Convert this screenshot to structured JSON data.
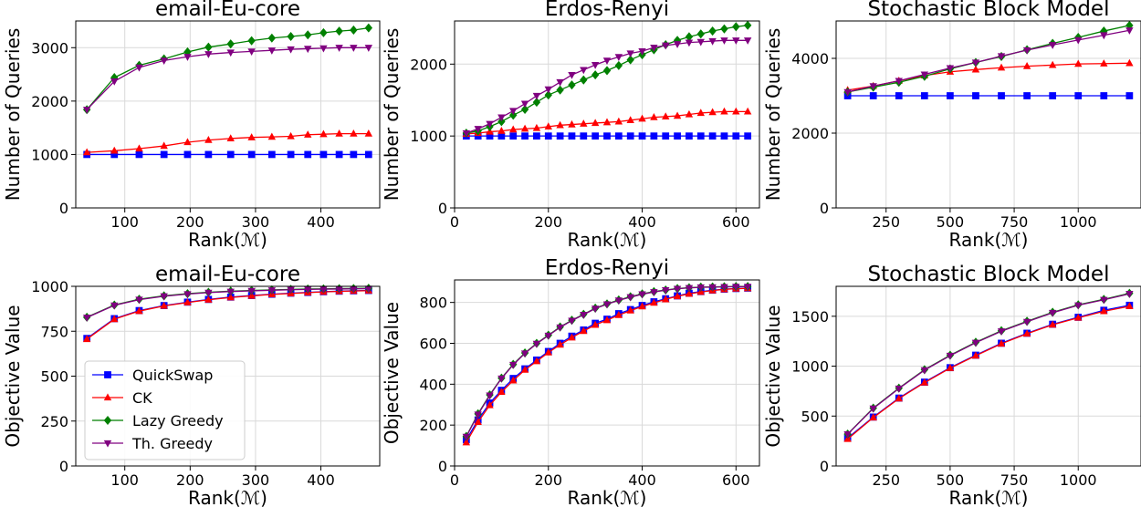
{
  "colors": {
    "QuickSwap": "#0000ff",
    "CK": "#ff0000",
    "Lazy Greedy": "#008000",
    "Th. Greedy": "#800080"
  },
  "markers": {
    "QuickSwap": "square",
    "CK": "triangle-up",
    "Lazy Greedy": "diamond",
    "Th. Greedy": "triangle-down"
  },
  "legend": [
    "QuickSwap",
    "CK",
    "Lazy Greedy",
    "Th. Greedy"
  ],
  "chart_data": [
    {
      "type": "line",
      "title": "email-Eu-core",
      "xlabel": "Rank(ℳ)",
      "ylabel": "Number of Queries",
      "xlim": [
        25,
        490
      ],
      "ylim": [
        0,
        3500
      ],
      "xticks": [
        100,
        200,
        300,
        400
      ],
      "yticks": [
        0,
        1000,
        2000,
        3000
      ],
      "grid": true,
      "x": [
        42,
        84,
        122,
        160,
        196,
        228,
        262,
        294,
        325,
        354,
        380,
        404,
        428,
        450,
        473
      ],
      "series": [
        {
          "name": "QuickSwap",
          "values": [
            1000,
            1000,
            1000,
            1000,
            1000,
            1000,
            1000,
            1000,
            1000,
            1000,
            1000,
            1000,
            1000,
            1000,
            1000
          ]
        },
        {
          "name": "CK",
          "values": [
            1040,
            1070,
            1110,
            1160,
            1230,
            1270,
            1300,
            1320,
            1330,
            1340,
            1370,
            1380,
            1390,
            1390,
            1390
          ]
        },
        {
          "name": "Lazy Greedy",
          "values": [
            1840,
            2440,
            2670,
            2790,
            2920,
            3010,
            3070,
            3130,
            3180,
            3210,
            3240,
            3280,
            3310,
            3330,
            3370
          ]
        },
        {
          "name": "Th. Greedy",
          "values": [
            1840,
            2370,
            2630,
            2760,
            2830,
            2880,
            2910,
            2930,
            2950,
            2970,
            2980,
            2990,
            3000,
            3000,
            3000
          ]
        }
      ]
    },
    {
      "type": "line",
      "title": "Erdos-Renyi",
      "xlabel": "Rank(ℳ)",
      "ylabel": "Number of Queries",
      "xlim": [
        0,
        650
      ],
      "ylim": [
        0,
        2600
      ],
      "xticks": [
        0,
        200,
        400,
        600
      ],
      "yticks": [
        0,
        1000,
        2000
      ],
      "grid": true,
      "x": [
        25,
        50,
        75,
        100,
        125,
        150,
        175,
        200,
        225,
        250,
        275,
        300,
        325,
        350,
        375,
        400,
        425,
        450,
        475,
        500,
        525,
        550,
        575,
        600,
        625
      ],
      "series": [
        {
          "name": "QuickSwap",
          "values": [
            1000,
            1000,
            1000,
            1000,
            1000,
            1000,
            1000,
            1000,
            1000,
            1000,
            1000,
            1000,
            1000,
            1000,
            1000,
            1000,
            1000,
            1000,
            1000,
            1000,
            1000,
            1000,
            1000,
            1000,
            1000
          ]
        },
        {
          "name": "CK",
          "values": [
            1030,
            1040,
            1060,
            1070,
            1090,
            1100,
            1110,
            1130,
            1150,
            1160,
            1170,
            1180,
            1190,
            1200,
            1220,
            1240,
            1260,
            1270,
            1280,
            1300,
            1320,
            1330,
            1340,
            1340,
            1340
          ]
        },
        {
          "name": "Lazy Greedy",
          "values": [
            1040,
            1070,
            1130,
            1200,
            1290,
            1370,
            1470,
            1570,
            1640,
            1710,
            1780,
            1850,
            1910,
            1980,
            2060,
            2130,
            2200,
            2270,
            2330,
            2380,
            2420,
            2460,
            2490,
            2520,
            2540
          ]
        },
        {
          "name": "Th. Greedy",
          "values": [
            1040,
            1100,
            1170,
            1260,
            1350,
            1450,
            1560,
            1650,
            1750,
            1850,
            1920,
            1990,
            2050,
            2100,
            2150,
            2180,
            2230,
            2260,
            2280,
            2300,
            2310,
            2320,
            2330,
            2330,
            2330
          ]
        }
      ]
    },
    {
      "type": "line",
      "title": "Stochastic Block Model",
      "xlabel": "Rank(ℳ)",
      "ylabel": "Number of Queries",
      "xlim": [
        55,
        1245
      ],
      "ylim": [
        0,
        5000
      ],
      "xticks": [
        250,
        500,
        750,
        1000
      ],
      "yticks": [
        0,
        2000,
        4000
      ],
      "grid": true,
      "x": [
        100,
        200,
        300,
        400,
        500,
        600,
        700,
        800,
        900,
        1000,
        1100,
        1200
      ],
      "series": [
        {
          "name": "QuickSwap",
          "values": [
            3000,
            3000,
            3000,
            3000,
            3000,
            3000,
            3000,
            3000,
            3000,
            3000,
            3000,
            3000
          ]
        },
        {
          "name": "CK",
          "values": [
            3150,
            3260,
            3400,
            3540,
            3640,
            3700,
            3750,
            3790,
            3820,
            3850,
            3860,
            3870
          ]
        },
        {
          "name": "Lazy Greedy",
          "values": [
            3100,
            3230,
            3360,
            3520,
            3720,
            3890,
            4050,
            4230,
            4400,
            4560,
            4730,
            4880
          ]
        },
        {
          "name": "Th. Greedy",
          "values": [
            3100,
            3260,
            3400,
            3570,
            3740,
            3890,
            4060,
            4220,
            4360,
            4490,
            4620,
            4750
          ]
        }
      ]
    },
    {
      "type": "line",
      "title": "email-Eu-core",
      "xlabel": "Rank(ℳ)",
      "ylabel": "Objective Value",
      "xlim": [
        25,
        490
      ],
      "ylim": [
        0,
        1000
      ],
      "xticks": [
        100,
        200,
        300,
        400
      ],
      "yticks": [
        0,
        250,
        500,
        750,
        1000
      ],
      "grid": true,
      "x": [
        42,
        84,
        122,
        160,
        196,
        228,
        262,
        294,
        325,
        354,
        380,
        404,
        428,
        450,
        473
      ],
      "series": [
        {
          "name": "QuickSwap",
          "values": [
            710,
            820,
            865,
            893,
            912,
            927,
            940,
            949,
            956,
            962,
            966,
            970,
            973,
            975,
            977
          ]
        },
        {
          "name": "CK",
          "values": [
            706,
            817,
            862,
            891,
            910,
            925,
            938,
            947,
            955,
            960,
            965,
            969,
            972,
            974,
            976
          ]
        },
        {
          "name": "Lazy Greedy",
          "values": [
            828,
            896,
            928,
            947,
            959,
            967,
            973,
            977,
            980,
            983,
            985,
            986,
            987,
            988,
            989
          ]
        },
        {
          "name": "Th. Greedy",
          "values": [
            826,
            894,
            926,
            945,
            957,
            965,
            971,
            975,
            978,
            981,
            983,
            984,
            985,
            986,
            987
          ]
        }
      ]
    },
    {
      "type": "line",
      "title": "Erdos-Renyi",
      "xlabel": "Rank(ℳ)",
      "ylabel": "Objective Value",
      "xlim": [
        0,
        650
      ],
      "ylim": [
        0,
        910
      ],
      "xticks": [
        0,
        200,
        400,
        600
      ],
      "yticks": [
        0,
        200,
        400,
        600,
        800
      ],
      "grid": true,
      "x": [
        25,
        50,
        75,
        100,
        125,
        150,
        175,
        200,
        225,
        250,
        275,
        300,
        325,
        350,
        375,
        400,
        425,
        450,
        475,
        500,
        525,
        550,
        575,
        600,
        625
      ],
      "series": [
        {
          "name": "QuickSwap",
          "values": [
            128,
            225,
            308,
            370,
            428,
            475,
            518,
            560,
            600,
            635,
            665,
            698,
            718,
            745,
            765,
            785,
            803,
            818,
            832,
            845,
            853,
            860,
            865,
            868,
            870
          ]
        },
        {
          "name": "CK",
          "values": [
            115,
            215,
            297,
            362,
            418,
            470,
            512,
            555,
            593,
            628,
            660,
            690,
            713,
            738,
            760,
            780,
            798,
            815,
            830,
            842,
            851,
            858,
            864,
            867,
            869
          ]
        },
        {
          "name": "Lazy Greedy",
          "values": [
            145,
            255,
            348,
            430,
            497,
            553,
            600,
            640,
            680,
            713,
            742,
            772,
            793,
            812,
            828,
            842,
            853,
            861,
            868,
            872,
            875,
            876,
            877,
            878,
            878
          ]
        },
        {
          "name": "Th. Greedy",
          "values": [
            143,
            252,
            345,
            428,
            495,
            551,
            598,
            638,
            678,
            711,
            740,
            770,
            791,
            810,
            826,
            840,
            851,
            860,
            867,
            871,
            874,
            875,
            876,
            877,
            877
          ]
        }
      ]
    },
    {
      "type": "line",
      "title": "Stochastic Block Model",
      "xlabel": "Rank(ℳ)",
      "ylabel": "Objective Value",
      "xlim": [
        55,
        1245
      ],
      "ylim": [
        0,
        1800
      ],
      "xticks": [
        250,
        500,
        750,
        1000
      ],
      "yticks": [
        0,
        500,
        1000,
        1500
      ],
      "grid": true,
      "x": [
        100,
        200,
        300,
        400,
        500,
        600,
        700,
        800,
        900,
        1000,
        1100,
        1200
      ],
      "series": [
        {
          "name": "QuickSwap",
          "values": [
            280,
            490,
            680,
            840,
            985,
            1110,
            1230,
            1330,
            1420,
            1490,
            1560,
            1610
          ]
        },
        {
          "name": "CK",
          "values": [
            270,
            485,
            675,
            835,
            980,
            1105,
            1225,
            1325,
            1415,
            1485,
            1550,
            1600
          ]
        },
        {
          "name": "Lazy Greedy",
          "values": [
            320,
            580,
            780,
            965,
            1110,
            1240,
            1355,
            1450,
            1540,
            1615,
            1670,
            1730
          ]
        },
        {
          "name": "Th. Greedy",
          "values": [
            318,
            576,
            776,
            960,
            1105,
            1235,
            1350,
            1445,
            1535,
            1610,
            1665,
            1725
          ]
        }
      ]
    }
  ]
}
